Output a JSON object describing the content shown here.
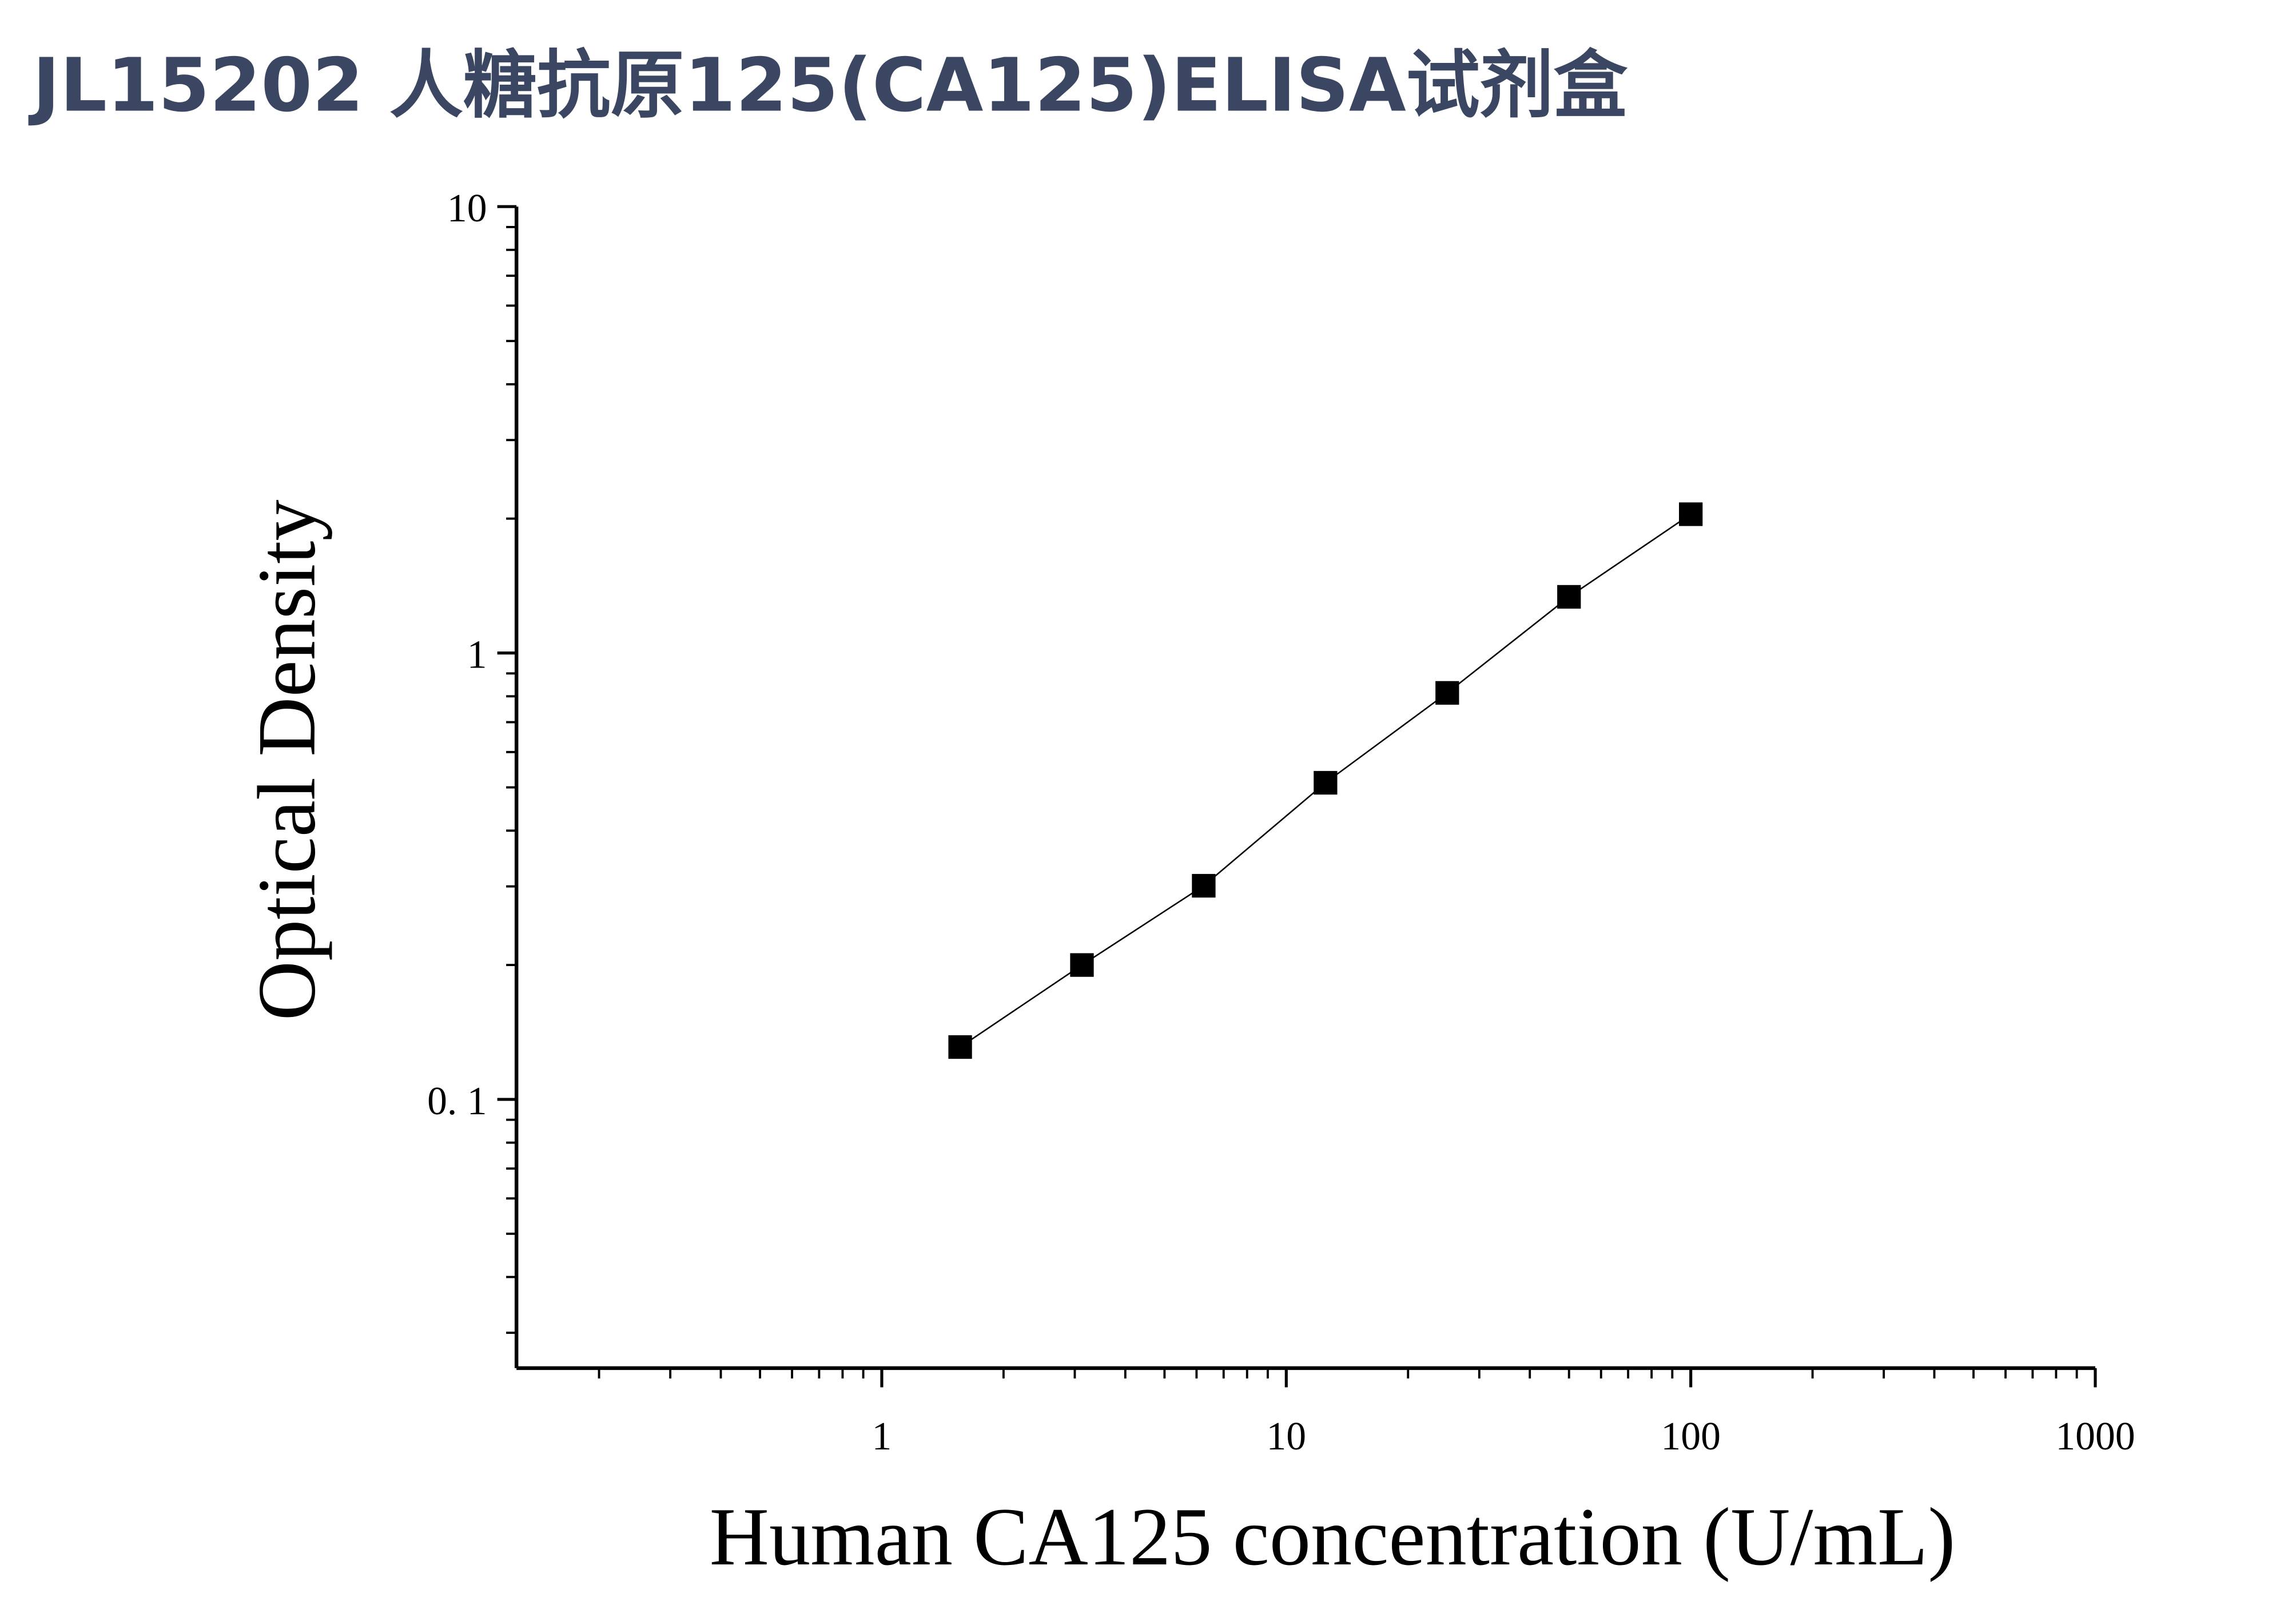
{
  "chart_data": {
    "type": "scatter",
    "title": "JL15202 人糖抗原125(CA125)ELISA试剂盒",
    "x_label": "Human CA125 concentration (U/mL)",
    "y_label": "Optical Density",
    "x_scale": "log",
    "y_scale": "log",
    "xlim": [
      0.125,
      1000
    ],
    "ylim": [
      0.025,
      10
    ],
    "xticks": [
      1,
      10,
      100,
      1000
    ],
    "yticks": [
      {
        "value": 0.1,
        "label": "0. 1"
      },
      1,
      10
    ],
    "series": [
      {
        "name": "CA125",
        "color": "#000000",
        "x": [
          1.5625,
          3.125,
          6.25,
          12.5,
          25,
          50,
          100
        ],
        "values": [
          0.131,
          0.2,
          0.301,
          0.512,
          0.814,
          1.336,
          2.046
        ]
      }
    ]
  }
}
